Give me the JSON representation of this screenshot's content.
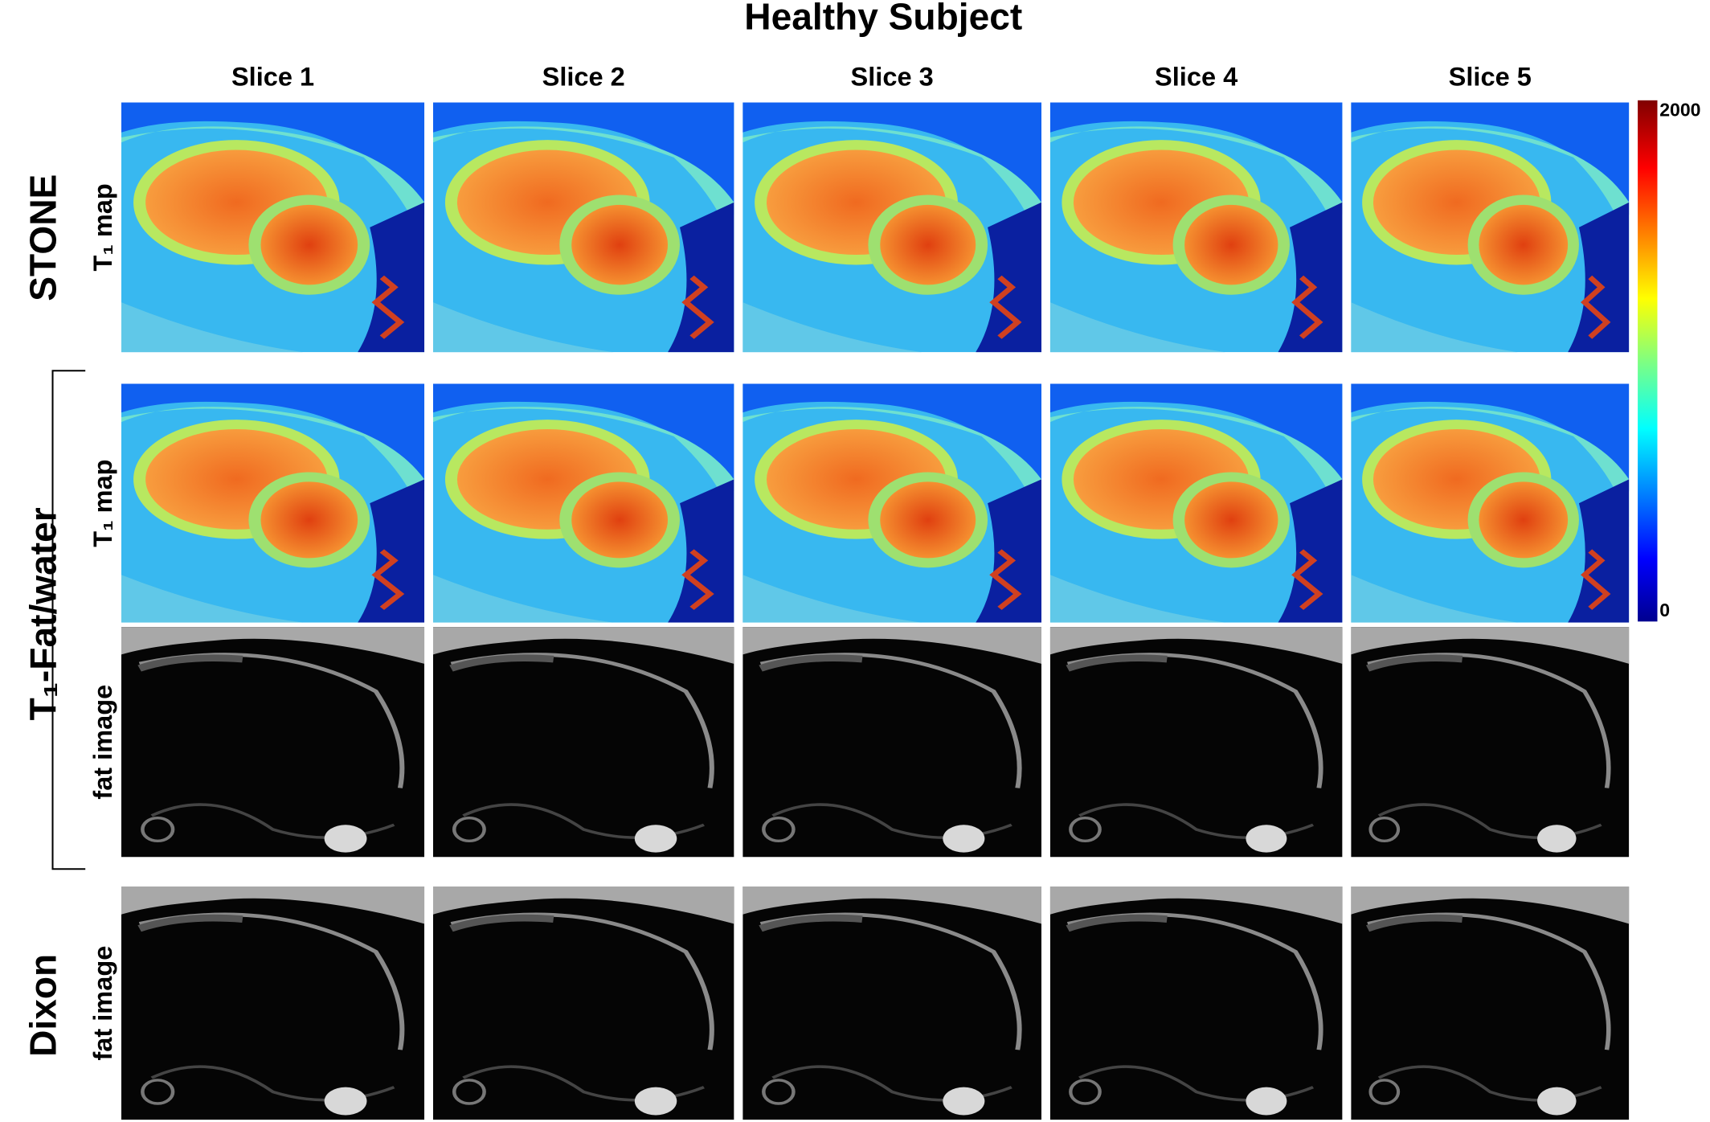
{
  "title": "Healthy Subject",
  "columns": [
    "Slice 1",
    "Slice 2",
    "Slice 3",
    "Slice 4",
    "Slice 5"
  ],
  "groups": [
    {
      "label": "STONE",
      "rows": [
        "T₁ map"
      ]
    },
    {
      "label": "T₁-Fat/water",
      "rows": [
        "T₁ map",
        "fat image"
      ]
    },
    {
      "label": "Dixon",
      "rows": [
        "fat image"
      ]
    }
  ],
  "colorbar": {
    "max": 2000,
    "min": 0
  }
}
